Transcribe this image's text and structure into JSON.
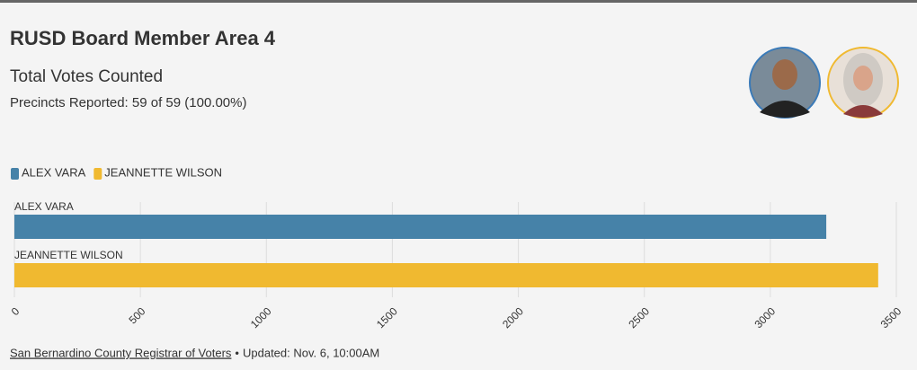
{
  "header": {
    "title": "RUSD Board Member Area 4",
    "subtitle": "Total Votes Counted",
    "precincts": "Precincts Reported: 59 of 59 (100.00%)"
  },
  "chart_data": {
    "type": "bar",
    "orientation": "horizontal",
    "categories": [
      "ALEX VARA",
      "JEANNETTE WILSON"
    ],
    "values": [
      3222,
      3428
    ],
    "colors": [
      "#4682a8",
      "#f0b930"
    ],
    "xlim": [
      0,
      3500
    ],
    "xticks": [
      0,
      500,
      1000,
      1500,
      2000,
      2500,
      3000,
      3500
    ],
    "grid": true,
    "legend": "top-left"
  },
  "footer": {
    "source": "San Bernardino County Registrar of Voters",
    "separator": "•",
    "updated": "Updated: Nov. 6, 10:00AM"
  }
}
